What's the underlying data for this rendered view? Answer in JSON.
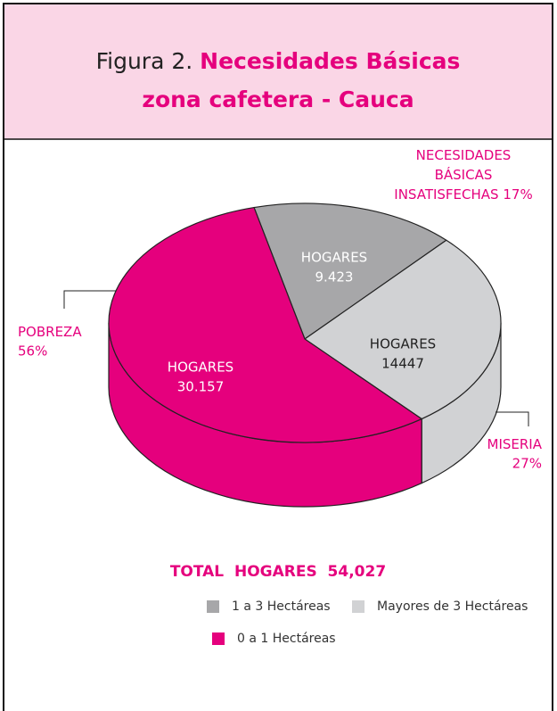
{
  "chart_data": {
    "type": "pie",
    "title_prefix": "Figura 2.",
    "title": [
      "Necesidades Básicas",
      "zona cafetera - Cauca"
    ],
    "categories": [
      [
        "NECESIDADES",
        "BÁSICAS",
        "INSATISFECHAS"
      ],
      [
        "MISERIA"
      ],
      [
        "POBREZA"
      ]
    ],
    "values": [
      17,
      27,
      56
    ],
    "value_labels": [
      "17%",
      "27%",
      "56%"
    ],
    "colors": [
      "#a7a7a9",
      "#d1d2d4",
      "#e5007d"
    ],
    "inner_labels": [
      {
        "name": "HOGARES",
        "count": "9.423"
      },
      {
        "name": "HOGARES",
        "count": "14447"
      },
      {
        "name": "HOGARES",
        "count": "30.157"
      }
    ],
    "total_label": "TOTAL  HOGARES  54,027",
    "legend": [
      {
        "name": "1 a 3 Hectáreas",
        "color": "#a7a7a9"
      },
      {
        "name": "Mayores de 3 Hectáreas",
        "color": "#d1d2d4"
      },
      {
        "name": "0 a 1 Hectáreas",
        "color": "#e5007d"
      }
    ]
  }
}
